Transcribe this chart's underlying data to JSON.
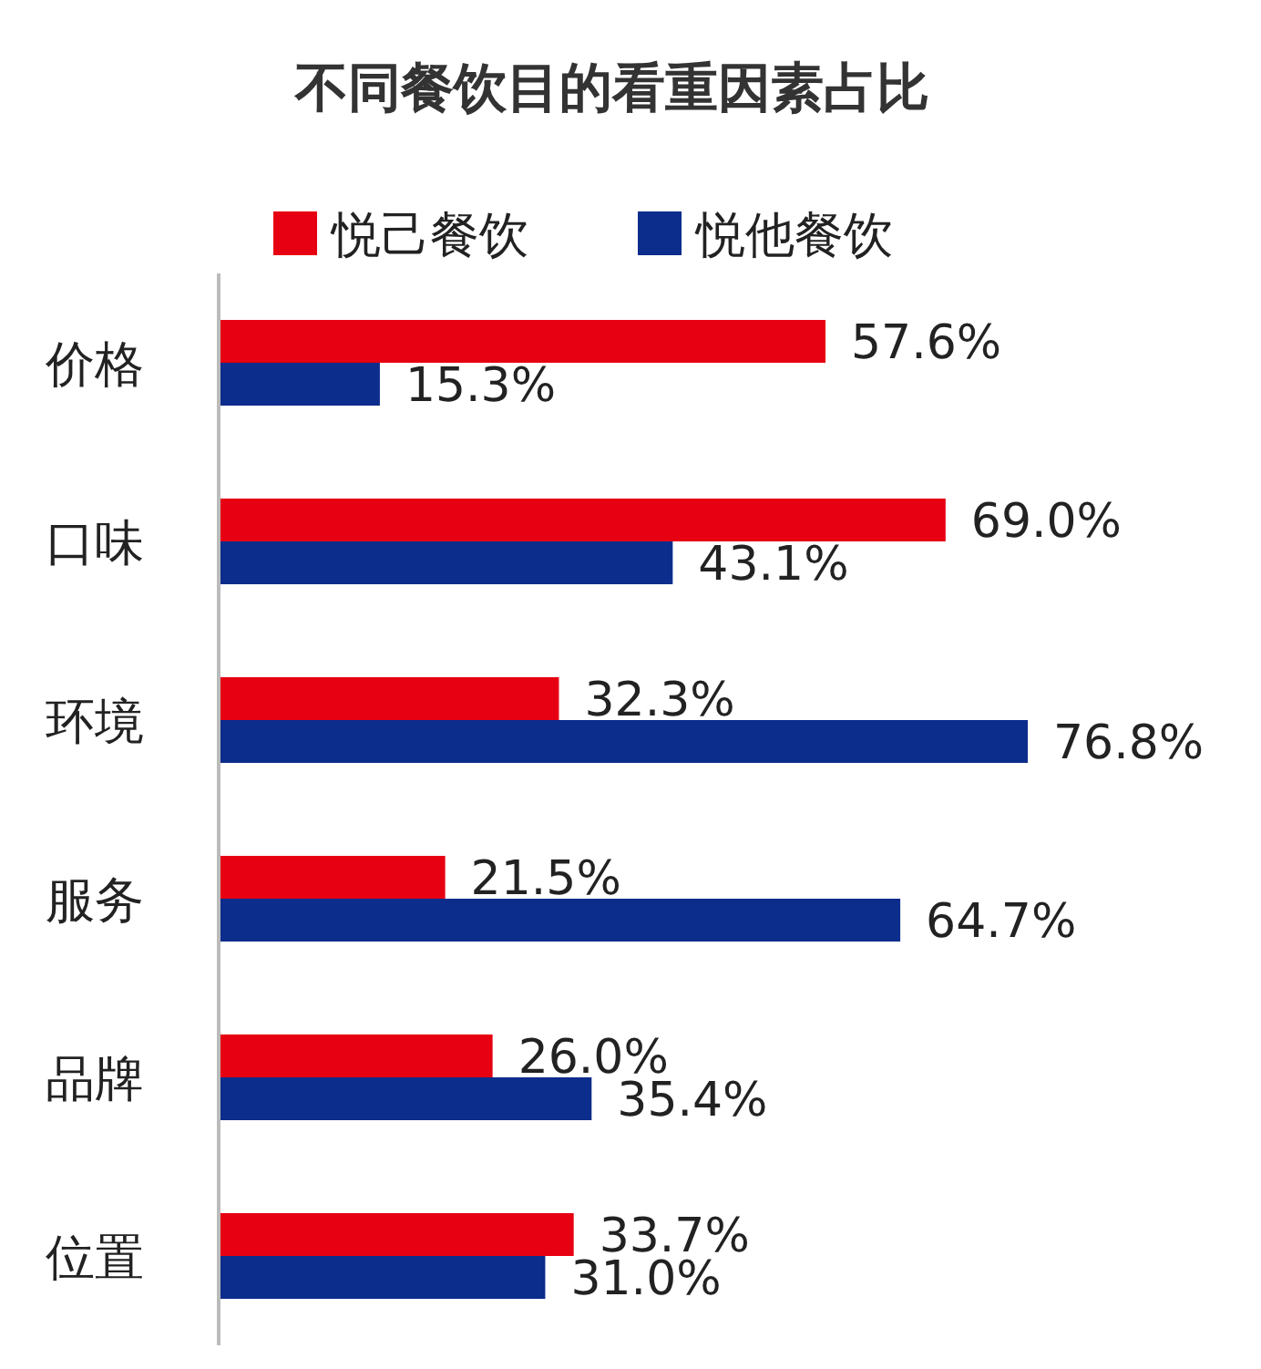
{
  "chart_data": {
    "type": "bar",
    "orientation": "horizontal",
    "title": "不同餐饮目的看重因素占比",
    "categories": [
      "价格",
      "口味",
      "环境",
      "服务",
      "品牌",
      "位置"
    ],
    "legend": "top",
    "series": [
      {
        "name": "悦己餐饮",
        "color": "#e60012",
        "values": [
          57.6,
          69.0,
          32.3,
          21.5,
          26.0,
          33.7
        ],
        "value_labels": [
          "57.6%",
          "69.0%",
          "32.3%",
          "21.5%",
          "26.0%",
          "33.7%"
        ]
      },
      {
        "name": "悦他餐饮",
        "color": "#0d2d8c",
        "values": [
          15.3,
          43.1,
          76.8,
          64.7,
          35.4,
          31.0
        ],
        "value_labels": [
          "15.3%",
          "43.1%",
          "76.8%",
          "64.7%",
          "35.4%",
          "31.0%"
        ]
      }
    ]
  }
}
